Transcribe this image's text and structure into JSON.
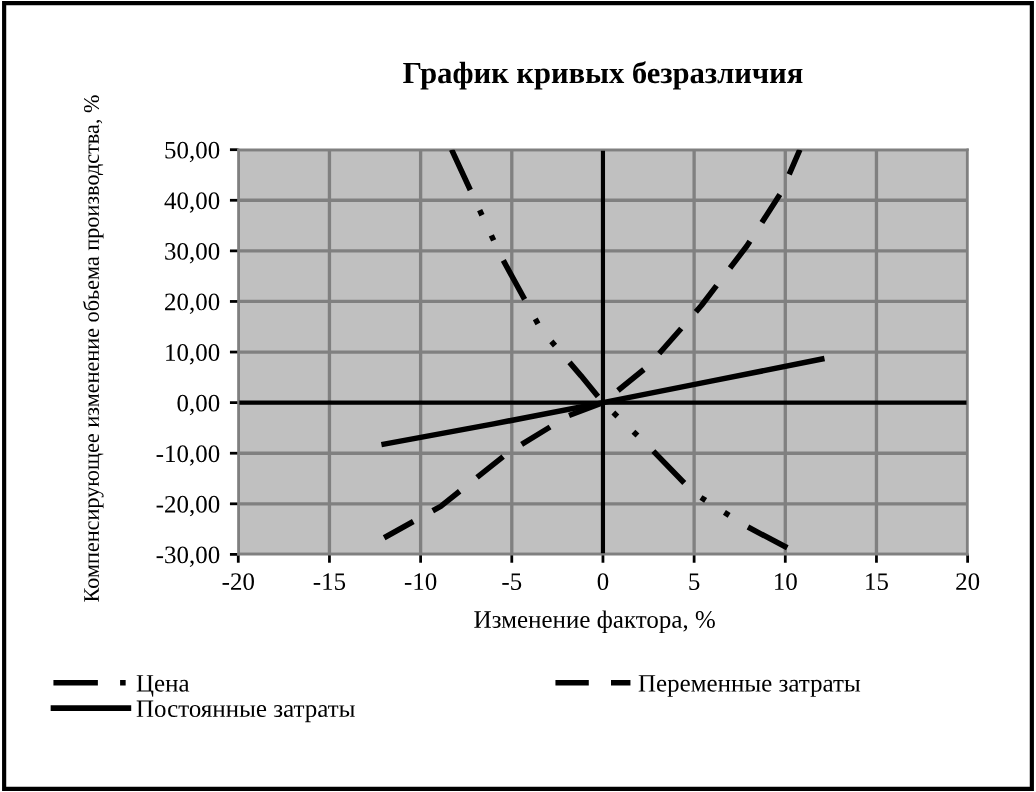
{
  "chart_data": {
    "type": "line",
    "title": "График кривых безразличия",
    "xlabel": "Изменение фактора, %",
    "ylabel": "Компенсирующее изменение обьема производства, %",
    "series": [
      {
        "name": "Цена",
        "color": "#000000",
        "line_style": "dotted",
        "x": [
          -8.3,
          -5.6,
          -3.4,
          -1.2,
          0,
          2.5,
          5,
          7.9,
          10.8
        ],
        "values": [
          50,
          29,
          14.5,
          5.3,
          0,
          -8.6,
          -17.9,
          -24.5,
          -30
        ]
      },
      {
        "name": "Переменные затраты",
        "color": "#000000",
        "line_style": "dashed",
        "x": [
          -12,
          -8.9,
          -5.2,
          -1.9,
          0,
          2.5,
          5.4,
          7.9,
          9.8,
          10.8
        ],
        "values": [
          -26.7,
          -20.5,
          -9.9,
          -2.6,
          0,
          7.3,
          19.2,
          31,
          41.7,
          50
        ]
      },
      {
        "name": "Постоянные затраты",
        "color": "#000000",
        "line_style": "solid",
        "x": [
          -12,
          -6,
          0,
          6,
          12
        ],
        "values": [
          -8.2,
          -4.2,
          0,
          4.3,
          8.6
        ]
      }
    ],
    "xlim": [
      -20,
      20
    ],
    "xticks": [
      -20,
      -15,
      -10,
      -5,
      0,
      5,
      10,
      15,
      20
    ],
    "ylim": [
      -30,
      50
    ],
    "yticks": [
      {
        "value": -30,
        "label": "-30,00"
      },
      {
        "value": -20,
        "label": "-20,00"
      },
      {
        "value": -10,
        "label": "-10,00"
      },
      {
        "value": 0,
        "label": "0,00"
      },
      {
        "value": 10,
        "label": "10,00"
      },
      {
        "value": 20,
        "label": "20,00"
      },
      {
        "value": 30,
        "label": "30,00"
      },
      {
        "value": 40,
        "label": "40,00"
      },
      {
        "value": 50,
        "label": "50,00"
      }
    ],
    "grid": true,
    "legend": "bottom",
    "marker": "none"
  }
}
